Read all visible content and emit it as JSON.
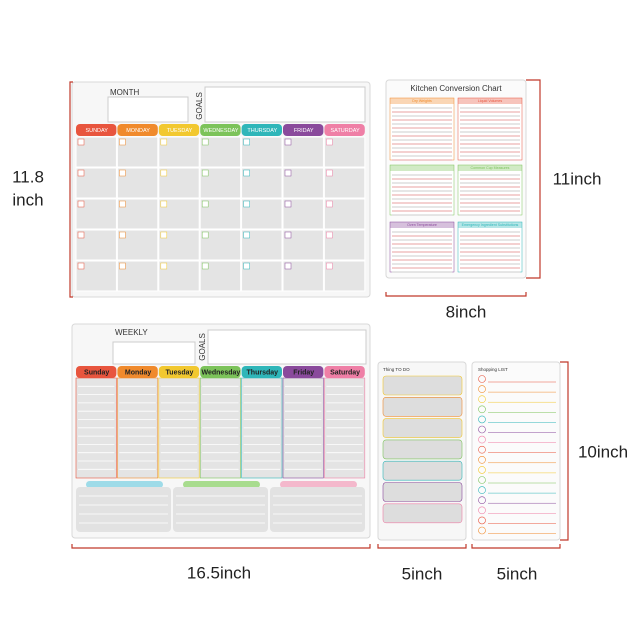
{
  "monthly": {
    "month_label": "MONTH",
    "goals_label": "GOALS",
    "days": [
      "SUNDAY",
      "MONDAY",
      "TUESDAY",
      "WEDNESDAY",
      "THURSDAY",
      "FRIDAY",
      "SATURDAY"
    ],
    "height_label": [
      "11.8",
      "inch"
    ]
  },
  "kitchen": {
    "title": "Kitchen Conversion Chart",
    "sections": [
      "Dry Weights",
      "Liquid Volumes",
      "Common Cup Measures",
      "Oven Temperature",
      "Emergency Ingredient Substitutions"
    ],
    "height_label": "11inch",
    "width_label": "8inch"
  },
  "weekly": {
    "weekly_label": "WEEKLY",
    "goals_label": "GOALS",
    "days": [
      "Sunday",
      "Monday",
      "Tuesday",
      "Wednesday",
      "Thursday",
      "Friday",
      "Saturday"
    ],
    "width_label": "16.5inch"
  },
  "todo": {
    "title": "Thing TO DO",
    "width_label": "5inch"
  },
  "shopping": {
    "title": "Shopping LIST",
    "width_label": "5inch",
    "height_label": "10inch"
  }
}
